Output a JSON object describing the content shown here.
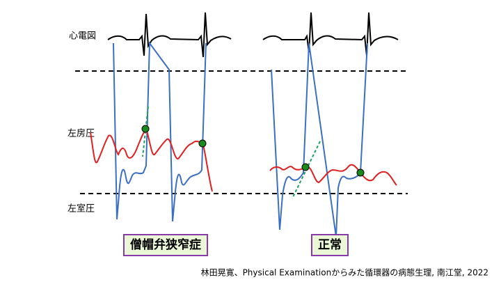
{
  "labels": {
    "ecg": "心電図",
    "la_pressure": "左房圧",
    "lv_pressure": "左室圧"
  },
  "panels": [
    {
      "title": "僧帽弁狭窄症"
    },
    {
      "title": "正常"
    }
  ],
  "citation": "林田晃寛、Physical Examinationからみた循環器の病態生理, 南江堂, 2022"
}
